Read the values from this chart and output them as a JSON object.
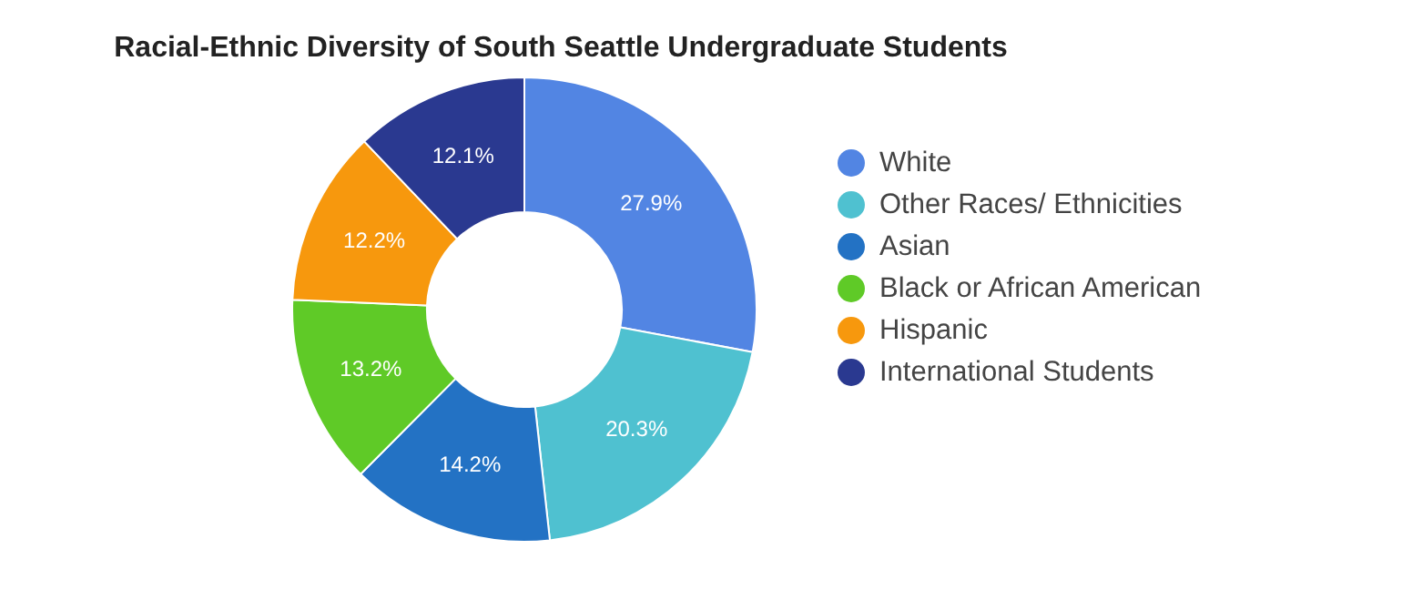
{
  "chart_data": {
    "type": "donut",
    "title": "Racial-Ethnic Diversity of South Seattle Undergraduate Students",
    "categories": [
      "White",
      "Other Races/ Ethnicities",
      "Asian",
      "Black or African American",
      "Hispanic",
      "International Students"
    ],
    "values": [
      27.9,
      20.3,
      14.2,
      13.2,
      12.2,
      12.1
    ],
    "colors": [
      "#5285e3",
      "#4fc1d0",
      "#2372c4",
      "#5fca27",
      "#f7980d",
      "#2a3990"
    ],
    "value_labels": [
      "27.9%",
      "20.3%",
      "14.2%",
      "13.2%",
      "12.2%",
      "12.1%"
    ],
    "legend": "right"
  }
}
